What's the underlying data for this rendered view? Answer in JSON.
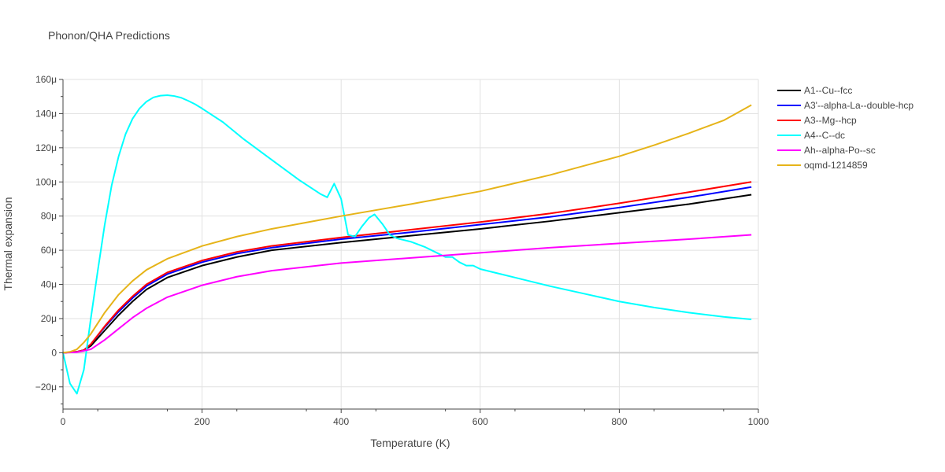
{
  "chart_data": {
    "type": "line",
    "title": "Phonon/QHA Predictions",
    "xlabel": "Temperature (K)",
    "ylabel": "Thermal expansion",
    "xlim": [
      0,
      1000
    ],
    "ylim": [
      -33,
      160
    ],
    "x_ticks": [
      0,
      200,
      400,
      600,
      800,
      1000
    ],
    "x_tick_labels": [
      "0",
      "200",
      "400",
      "600",
      "800",
      "1000"
    ],
    "y_ticks": [
      -20,
      0,
      20,
      40,
      60,
      80,
      100,
      120,
      140,
      160
    ],
    "y_tick_labels": [
      "−20μ",
      "0",
      "20μ",
      "40μ",
      "60μ",
      "80μ",
      "100μ",
      "120μ",
      "140μ",
      "160μ"
    ],
    "y_unit_note": "values in units of 1e-6",
    "grid": true,
    "legend_position": "right",
    "series": [
      {
        "name": "A1--Cu--fcc",
        "color": "#000000",
        "x": [
          0,
          20,
          30,
          40,
          60,
          80,
          100,
          120,
          150,
          200,
          250,
          300,
          400,
          500,
          600,
          700,
          800,
          900,
          990
        ],
        "y": [
          0,
          0.5,
          1.5,
          4,
          13,
          22,
          30,
          37,
          44,
          51,
          56,
          60,
          64.5,
          68.5,
          72.5,
          77,
          82,
          87,
          92.5
        ]
      },
      {
        "name": "A3'--alpha-La--double-hcp",
        "color": "#0000ff",
        "x": [
          0,
          20,
          30,
          40,
          60,
          80,
          100,
          120,
          150,
          200,
          250,
          300,
          400,
          500,
          600,
          700,
          800,
          900,
          990
        ],
        "y": [
          0,
          0.5,
          1.5,
          5,
          15,
          24,
          32,
          39,
          46,
          53,
          58,
          61.5,
          66.5,
          70.5,
          75,
          79.5,
          85,
          91,
          97
        ]
      },
      {
        "name": "A3--Mg--hcp",
        "color": "#ff0000",
        "x": [
          0,
          20,
          30,
          40,
          60,
          80,
          100,
          120,
          150,
          200,
          250,
          300,
          400,
          500,
          600,
          700,
          800,
          900,
          990
        ],
        "y": [
          0,
          0.5,
          1.5,
          5,
          15.5,
          25,
          33,
          40,
          47,
          54,
          59,
          62.5,
          67.5,
          72,
          76.5,
          81.5,
          87.5,
          94,
          100
        ]
      },
      {
        "name": "A4--C--dc",
        "color": "#00ffff",
        "x": [
          0,
          10,
          20,
          30,
          40,
          50,
          60,
          70,
          80,
          90,
          100,
          110,
          120,
          130,
          140,
          150,
          160,
          170,
          180,
          190,
          200,
          230,
          260,
          300,
          340,
          370,
          380,
          390,
          400,
          410,
          420,
          430,
          440,
          448,
          460,
          470,
          480,
          490,
          500,
          520,
          540,
          550,
          560,
          570,
          580,
          590,
          600,
          650,
          700,
          750,
          800,
          850,
          900,
          950,
          990
        ],
        "y": [
          0,
          -18,
          -24,
          -10,
          20,
          48,
          75,
          98,
          115,
          128,
          137,
          143,
          147,
          149.5,
          150.5,
          150.8,
          150.3,
          149.3,
          147.5,
          145.5,
          143,
          135,
          125,
          113,
          101,
          93,
          91,
          99,
          90,
          69,
          68,
          74,
          79,
          81,
          75,
          69,
          67,
          66,
          65,
          62,
          58,
          56,
          56,
          53,
          51,
          51,
          49,
          44,
          39,
          34.5,
          30,
          26.5,
          23.5,
          21,
          19.5
        ]
      },
      {
        "name": "Ah--alpha-Po--sc",
        "color": "#ff00ff",
        "x": [
          0,
          20,
          40,
          60,
          80,
          100,
          120,
          150,
          200,
          250,
          300,
          400,
          500,
          600,
          700,
          800,
          900,
          990
        ],
        "y": [
          0,
          0.3,
          2,
          7.5,
          14,
          20.5,
          26,
          32.5,
          39.5,
          44.5,
          48,
          52.5,
          55.5,
          58.5,
          61.5,
          64,
          66.5,
          69
        ]
      },
      {
        "name": "oqmd-1214859",
        "color": "#e6b419",
        "x": [
          0,
          10,
          20,
          30,
          40,
          60,
          80,
          100,
          120,
          150,
          200,
          250,
          300,
          400,
          500,
          600,
          700,
          800,
          850,
          900,
          950,
          990
        ],
        "y": [
          0,
          0.5,
          2,
          6,
          11,
          23.5,
          34,
          42,
          48.5,
          55,
          62.5,
          68,
          72.5,
          80,
          87,
          94.5,
          104,
          115,
          121.5,
          128.5,
          136,
          145
        ]
      }
    ]
  }
}
